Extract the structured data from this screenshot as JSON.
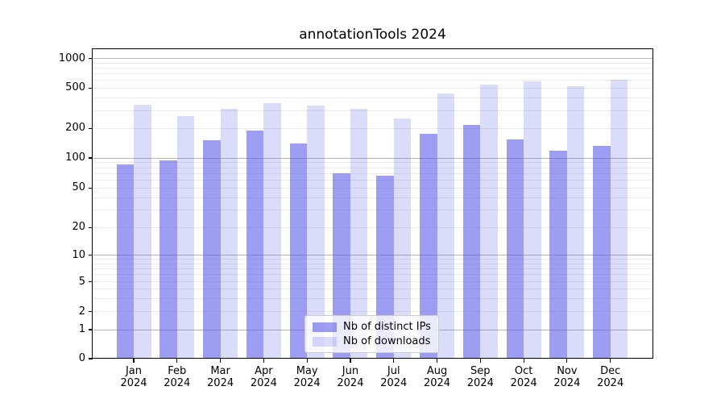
{
  "chart_data": {
    "type": "bar",
    "title": "annotationTools 2024",
    "categories": [
      "Jan",
      "Feb",
      "Mar",
      "Apr",
      "May",
      "Jun",
      "Jul",
      "Aug",
      "Sep",
      "Oct",
      "Nov",
      "Dec"
    ],
    "year": "2024",
    "series": [
      {
        "name": "Nb of distinct IPs",
        "color": "rgba(92,92,232,0.60)",
        "legend_hex": "#a1a1ef",
        "values": [
          86,
          95,
          151,
          191,
          140,
          70,
          66,
          177,
          215,
          154,
          119,
          133
        ]
      },
      {
        "name": "Nb of downloads",
        "color": "rgba(92,92,232,0.22)",
        "legend_hex": "#dcdcf8",
        "values": [
          343,
          264,
          310,
          353,
          336,
          314,
          252,
          443,
          545,
          580,
          523,
          604
        ]
      }
    ],
    "y_axis": {
      "scale": "symlog",
      "ticks": [
        0,
        1,
        2,
        5,
        10,
        20,
        50,
        100,
        200,
        500,
        1000
      ],
      "range": [
        0,
        1300
      ]
    },
    "grid": {
      "major_lines": [
        1,
        10,
        100,
        1000
      ],
      "minor_subs": [
        2,
        3,
        4,
        5,
        6,
        7,
        8,
        9
      ]
    },
    "legend_position": "lower center",
    "colors": {
      "major_grid": "#b4b4b4",
      "minor_grid": "#ebebeb",
      "axis": "#000000",
      "background": "#ffffff"
    }
  }
}
